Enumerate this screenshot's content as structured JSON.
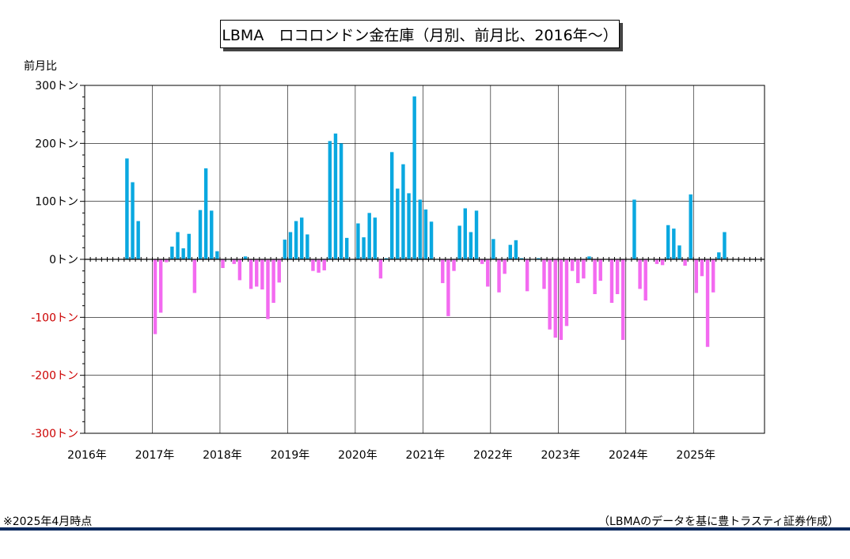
{
  "title": "LBMA　ロコロンドン金在庫（月別、前月比、2016年〜）",
  "note_left": "※2025年4月時点",
  "note_right": "（LBMAのデータを基に豊トラスティ証券作成）",
  "colors": {
    "positive": "#0aa8e0",
    "negative": "#f36af0",
    "neg_label": "#cc0000",
    "footer": "#0d2a5e"
  },
  "chart_data": {
    "type": "bar",
    "title": "LBMA　ロコロンドン金在庫（月別、前月比、2016年〜）",
    "ylabel": "前月比",
    "y_ticks": [
      {
        "value": 300,
        "label": "300トン"
      },
      {
        "value": 200,
        "label": "200トン"
      },
      {
        "value": 100,
        "label": "100トン"
      },
      {
        "value": 0,
        "label": "0トン"
      },
      {
        "value": -100,
        "label": "-100トン"
      },
      {
        "value": -200,
        "label": "-200トン"
      },
      {
        "value": -300,
        "label": "-300トン"
      }
    ],
    "x_ticks": [
      "2016年",
      "2017年",
      "2018年",
      "2019年",
      "2020年",
      "2021年",
      "2022年",
      "2023年",
      "2024年",
      "2025年"
    ],
    "ylim": [
      -300,
      300
    ],
    "grid": true,
    "start": "2016-01",
    "values": [
      0,
      0,
      0,
      0,
      0,
      0,
      0,
      174,
      133,
      66,
      0,
      0,
      -129,
      -92,
      -5,
      22,
      47,
      19,
      44,
      -58,
      85,
      157,
      84,
      14,
      -15,
      0,
      -8,
      -36,
      5,
      -51,
      -47,
      -52,
      -103,
      -75,
      -40,
      34,
      47,
      66,
      72,
      43,
      -20,
      -23,
      -19,
      204,
      217,
      200,
      37,
      0,
      62,
      38,
      80,
      72,
      -33,
      2,
      185,
      122,
      164,
      114,
      281,
      103,
      86,
      65,
      0,
      -41,
      -98,
      -20,
      58,
      88,
      47,
      84,
      -8,
      -47,
      35,
      -57,
      -25,
      25,
      33,
      2,
      -55,
      0,
      2,
      -51,
      -121,
      -135,
      -139,
      -115,
      -20,
      -41,
      -33,
      5,
      -60,
      -37,
      0,
      -75,
      -60,
      -139,
      0,
      103,
      -51,
      -71,
      0,
      -8,
      -10,
      59,
      53,
      24,
      -11,
      112,
      -58,
      -29,
      -151,
      -57,
      12,
      47,
      0,
      0,
      0,
      0,
      0,
      0
    ]
  }
}
